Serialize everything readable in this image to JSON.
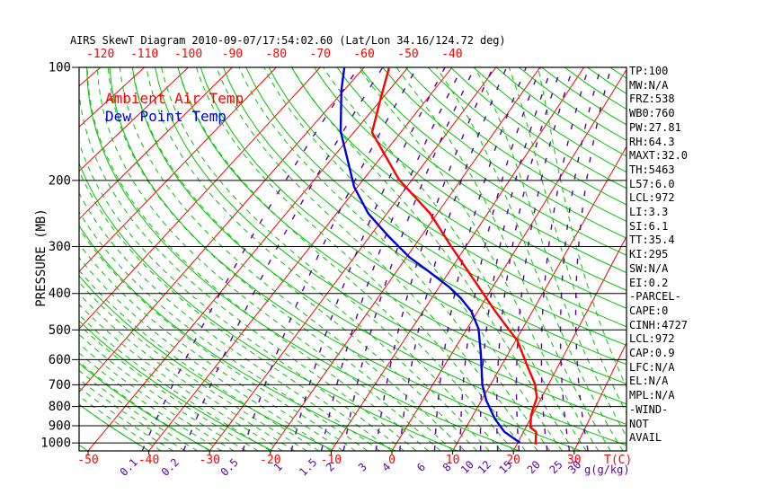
{
  "title": "AIRS SkewT Diagram 2010-09-07/17:54:02.60 (Lat/Lon 34.16/124.72 deg)",
  "legend": [
    {
      "label": "Ambient Air Temp",
      "color": "#ff0000"
    },
    {
      "label": "Dew Point Temp",
      "color": "#0000dd"
    }
  ],
  "axes": {
    "pressure_axis_label": "PRESSURE (MB)",
    "pressure_ticks_mb": [
      100,
      200,
      300,
      400,
      500,
      600,
      700,
      800,
      900,
      1000
    ],
    "top_temp_ticks_c": [
      -120,
      -110,
      -100,
      -90,
      -80,
      -70,
      -60,
      -50,
      -40
    ],
    "bottom_temp_ticks_c": [
      -50,
      -40,
      -30,
      -20,
      -10,
      0,
      10,
      20,
      30
    ],
    "temp_axis_label": "T(C)",
    "mixing_ratio_ticks_gkg": [
      0.1,
      0.2,
      0.5,
      1,
      1.5,
      2,
      3,
      4,
      6,
      8,
      10,
      12,
      15,
      20,
      25,
      30
    ],
    "mixing_ratio_axis_label": "g(g/kg)"
  },
  "stats": [
    "TP:100",
    "MW:N/A",
    "FRZ:538",
    "WB0:760",
    "PW:27.81",
    "RH:64.3",
    "MAXT:32.0",
    "TH:5463",
    "L57:6.0",
    "LCL:972",
    "LI:3.3",
    "SI:6.1",
    "TT:35.4",
    "KI:295",
    "SW:N/A",
    "EI:0.2",
    "-PARCEL-",
    "CAPE:0",
    "CINH:4727",
    "LCL:972",
    "CAP:0.9",
    "LFC:N/A",
    "EL:N/A",
    "MPL:N/A",
    "-WIND-",
    "NOT",
    "AVAIL"
  ],
  "colors": {
    "isotherm": "#ff0000",
    "adiabat": "#00c400",
    "mixing_ratio": "#5a00a0",
    "grid": "#000000",
    "temp_curve": "#ff0000",
    "dew_curve": "#0000dd"
  },
  "chart_data": {
    "type": "line",
    "title": "AIRS SkewT Diagram 2010-09-07/17:54:02.60 (Lat/Lon 34.16/124.72 deg)",
    "x_axis": {
      "label": "T(C)",
      "top_scale_c": [
        -120,
        -110,
        -100,
        -90,
        -80,
        -70,
        -60,
        -50,
        -40
      ],
      "bottom_scale_c": [
        -50,
        -40,
        -30,
        -20,
        -10,
        0,
        10,
        20,
        30
      ]
    },
    "y_axis": {
      "label": "PRESSURE (MB)",
      "scale": "log",
      "range_mb": [
        100,
        1050
      ]
    },
    "series": [
      {
        "name": "Ambient Air Temp",
        "color": "#ff0000",
        "points_p_t": [
          [
            100,
            -54.3
          ],
          [
            120,
            -50.5
          ],
          [
            149,
            -46.1
          ],
          [
            199,
            -32.7
          ],
          [
            245,
            -21.4
          ],
          [
            300,
            -12.8
          ],
          [
            363,
            -4.9
          ],
          [
            445,
            3.1
          ],
          [
            497,
            7.5
          ],
          [
            534,
            10.3
          ],
          [
            631,
            14.9
          ],
          [
            696,
            17.6
          ],
          [
            757,
            19.2
          ],
          [
            844,
            19.8
          ],
          [
            910,
            20.8
          ],
          [
            934,
            22.1
          ],
          [
            1009,
            23.1
          ]
        ]
      },
      {
        "name": "Dew Point Temp",
        "color": "#0000dd",
        "points_p_t": [
          [
            100,
            -64.5
          ],
          [
            115,
            -60.6
          ],
          [
            148,
            -53.0
          ],
          [
            208,
            -40.7
          ],
          [
            245,
            -33.7
          ],
          [
            281,
            -26.5
          ],
          [
            320,
            -19.5
          ],
          [
            350,
            -13.8
          ],
          [
            384,
            -8.2
          ],
          [
            412,
            -4.6
          ],
          [
            447,
            -1.1
          ],
          [
            497,
            2.1
          ],
          [
            580,
            5.2
          ],
          [
            700,
            8.6
          ],
          [
            770,
            10.8
          ],
          [
            862,
            14.0
          ],
          [
            934,
            16.8
          ],
          [
            999,
            20.4
          ]
        ]
      }
    ],
    "background": {
      "isotherms_c": {
        "start": -120,
        "end": 40,
        "step": 10
      },
      "dry_adiabats_k": {
        "start": 220,
        "end": 530,
        "step": 10
      },
      "moist_adiabats_start_c": {
        "start": -40,
        "end": 44,
        "step": 2
      },
      "mixing_ratio_lines_gkg": [
        0.1,
        0.2,
        0.5,
        1,
        1.5,
        2,
        3,
        4,
        6,
        8,
        10,
        12,
        15,
        20,
        25,
        30
      ]
    },
    "legend_position": "top-left-inside"
  }
}
